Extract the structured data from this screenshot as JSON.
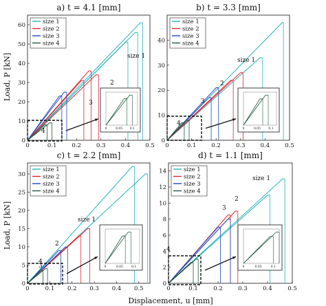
{
  "figure": {
    "ylabel": "Load, P [kN]",
    "xlabel": "Displacement, u [mm]",
    "colors": {
      "size 1": "#21b3b8",
      "size 2": "#e0242c",
      "size 3": "#1b48c2",
      "size 4": "#1f5a3c"
    }
  },
  "chart_data": [
    {
      "type": "line",
      "title": "a) t = 4.1 [mm]",
      "xlim": [
        0,
        0.5
      ],
      "ylim": [
        0,
        65
      ],
      "xticks": [
        "0",
        "0.1",
        "0.2",
        "0.3",
        "0.4",
        "0.5"
      ],
      "yticks": [
        "0",
        "10",
        "20",
        "30",
        "40",
        "50",
        "60"
      ],
      "legend": [
        "size 1",
        "size 2",
        "size 3",
        "size 4"
      ],
      "legend_position": "top-left",
      "annotations": [
        "size 1",
        "2",
        "3",
        "4"
      ],
      "inset_xticks": [
        "0",
        "0.05",
        "0.1"
      ],
      "series": [
        {
          "name": "size 1",
          "values": [
            [
              0,
              0
            ],
            [
              0.46,
              61
            ],
            [
              0.47,
              61
            ]
          ]
        },
        {
          "name": "size 1",
          "values": [
            [
              0,
              0
            ],
            [
              0.4,
              51
            ],
            [
              0.41,
              51
            ]
          ]
        },
        {
          "name": "size 1",
          "values": [
            [
              0,
              0
            ],
            [
              0.44,
              56
            ],
            [
              0.45,
              56
            ]
          ]
        },
        {
          "name": "size 2",
          "values": [
            [
              0,
              0
            ],
            [
              0.25,
              36
            ],
            [
              0.26,
              36
            ]
          ]
        },
        {
          "name": "size 2",
          "values": [
            [
              0,
              0
            ],
            [
              0.28,
              34
            ],
            [
              0.29,
              34
            ]
          ]
        },
        {
          "name": "size 2",
          "values": [
            [
              0,
              0
            ],
            [
              0.22,
              31
            ],
            [
              0.23,
              31
            ]
          ]
        },
        {
          "name": "size 3",
          "values": [
            [
              0,
              0
            ],
            [
              0.15,
              25
            ],
            [
              0.16,
              25
            ]
          ]
        },
        {
          "name": "size 3",
          "values": [
            [
              0,
              0
            ],
            [
              0.13,
              23
            ],
            [
              0.14,
              23
            ]
          ]
        },
        {
          "name": "size 4",
          "values": [
            [
              0,
              0
            ],
            [
              0.09,
              9
            ],
            [
              0.1,
              9
            ]
          ]
        },
        {
          "name": "size 4",
          "values": [
            [
              0,
              0
            ],
            [
              0.07,
              8
            ],
            [
              0.08,
              8
            ]
          ]
        }
      ]
    },
    {
      "type": "line",
      "title": "b) t = 3.3 [mm]",
      "xlim": [
        0,
        0.5
      ],
      "ylim": [
        0,
        50
      ],
      "xticks": [
        "0",
        "0.1",
        "0.2",
        "0.3",
        "0.4",
        "0.5"
      ],
      "yticks": [
        "0",
        "10",
        "20",
        "30",
        "40"
      ],
      "legend": [
        "size 1",
        "size 2",
        "size 3",
        "size 4"
      ],
      "legend_position": "top-left",
      "annotations": [
        "size 1",
        "2",
        "3",
        "4"
      ],
      "inset_xticks": [
        "0",
        "0.05",
        "0.1"
      ],
      "series": [
        {
          "name": "size 1",
          "values": [
            [
              0,
              0
            ],
            [
              0.47,
              47
            ],
            [
              0.475,
              47
            ]
          ]
        },
        {
          "name": "size 1",
          "values": [
            [
              0,
              0
            ],
            [
              0.38,
              33
            ],
            [
              0.39,
              33
            ]
          ]
        },
        {
          "name": "size 2",
          "values": [
            [
              0,
              0
            ],
            [
              0.3,
              27
            ],
            [
              0.31,
              27
            ]
          ]
        },
        {
          "name": "size 2",
          "values": [
            [
              0,
              0
            ],
            [
              0.26,
              24
            ],
            [
              0.27,
              24
            ]
          ]
        },
        {
          "name": "size 3",
          "values": [
            [
              0,
              0
            ],
            [
              0.2,
              21
            ],
            [
              0.21,
              21
            ]
          ]
        },
        {
          "name": "size 3",
          "values": [
            [
              0,
              0
            ],
            [
              0.17,
              17
            ],
            [
              0.18,
              17
            ]
          ]
        },
        {
          "name": "size 4",
          "values": [
            [
              0,
              0
            ],
            [
              0.08,
              8
            ],
            [
              0.09,
              8
            ]
          ]
        },
        {
          "name": "size 4",
          "values": [
            [
              0,
              0
            ],
            [
              0.06,
              7
            ],
            [
              0.07,
              7
            ]
          ]
        }
      ]
    },
    {
      "type": "line",
      "title": "c) t = 2.2 [mm]",
      "xlim": [
        0,
        0.55
      ],
      "ylim": [
        0,
        33
      ],
      "xticks": [
        "0",
        "0.1",
        "0.2",
        "0.3",
        "0.4",
        "0.5"
      ],
      "yticks": [
        "0",
        "5",
        "10",
        "15",
        "20",
        "25",
        "30"
      ],
      "legend": [
        "size 1",
        "size 2",
        "size 3",
        "size 4"
      ],
      "legend_position": "top-left",
      "annotations": [
        "size 1",
        "2",
        "3",
        "4"
      ],
      "inset_xticks": [
        "0",
        "0.05",
        "0.1"
      ],
      "series": [
        {
          "name": "size 1",
          "values": [
            [
              0,
              0
            ],
            [
              0.47,
              32
            ],
            [
              0.48,
              32
            ]
          ]
        },
        {
          "name": "size 1",
          "values": [
            [
              0,
              0
            ],
            [
              0.53,
              30
            ],
            [
              0.54,
              30
            ]
          ]
        },
        {
          "name": "size 2",
          "values": [
            [
              0,
              0
            ],
            [
              0.27,
              15
            ],
            [
              0.28,
              15
            ]
          ]
        },
        {
          "name": "size 2",
          "values": [
            [
              0,
              0
            ],
            [
              0.23,
              13
            ],
            [
              0.24,
              13
            ]
          ]
        },
        {
          "name": "size 3",
          "values": [
            [
              0,
              0
            ],
            [
              0.17,
              10
            ],
            [
              0.18,
              10
            ]
          ]
        },
        {
          "name": "size 3",
          "values": [
            [
              0,
              0
            ],
            [
              0.14,
              9
            ],
            [
              0.15,
              9
            ]
          ]
        },
        {
          "name": "size 4",
          "values": [
            [
              0,
              0
            ],
            [
              0.08,
              4
            ],
            [
              0.09,
              4
            ]
          ]
        },
        {
          "name": "size 4",
          "values": [
            [
              0,
              0
            ],
            [
              0.06,
              3.5
            ],
            [
              0.07,
              3.5
            ]
          ]
        }
      ]
    },
    {
      "type": "line",
      "title": "d) t = 1.1 [mm]",
      "xlim": [
        0,
        0.5
      ],
      "ylim": [
        0,
        15
      ],
      "xticks": [
        "0",
        "0.1",
        "0.2",
        "0.3",
        "0.4",
        "0.5"
      ],
      "yticks": [
        "0",
        "2",
        "4",
        "6",
        "8",
        "10",
        "12",
        "14"
      ],
      "legend": [
        "size 1",
        "size 2",
        "size 3",
        "size 4"
      ],
      "legend_position": "top-left",
      "annotations": [
        "size 1",
        "2",
        "3",
        "4"
      ],
      "inset_xticks": [
        "0",
        "0.05",
        "0.1"
      ],
      "series": [
        {
          "name": "size 1",
          "values": [
            [
              0,
              0
            ],
            [
              0.46,
              13
            ],
            [
              0.47,
              13
            ]
          ]
        },
        {
          "name": "size 1",
          "values": [
            [
              0,
              0
            ],
            [
              0.4,
              11
            ],
            [
              0.41,
              11
            ]
          ]
        },
        {
          "name": "size 2",
          "values": [
            [
              0,
              0
            ],
            [
              0.27,
              9
            ],
            [
              0.28,
              9
            ]
          ]
        },
        {
          "name": "size 2",
          "values": [
            [
              0,
              0
            ],
            [
              0.24,
              8.5
            ],
            [
              0.25,
              8.5
            ]
          ]
        },
        {
          "name": "size 3",
          "values": [
            [
              0,
              0
            ],
            [
              0.24,
              8
            ],
            [
              0.25,
              8
            ]
          ]
        },
        {
          "name": "size 3",
          "values": [
            [
              0,
              0
            ],
            [
              0.2,
              7
            ],
            [
              0.21,
              7
            ]
          ]
        },
        {
          "name": "size 4",
          "values": [
            [
              0,
              0
            ],
            [
              0.11,
              3
            ],
            [
              0.12,
              3
            ]
          ]
        },
        {
          "name": "size 4",
          "values": [
            [
              0,
              0
            ],
            [
              0.09,
              2.6
            ],
            [
              0.1,
              2.6
            ]
          ]
        }
      ]
    }
  ]
}
